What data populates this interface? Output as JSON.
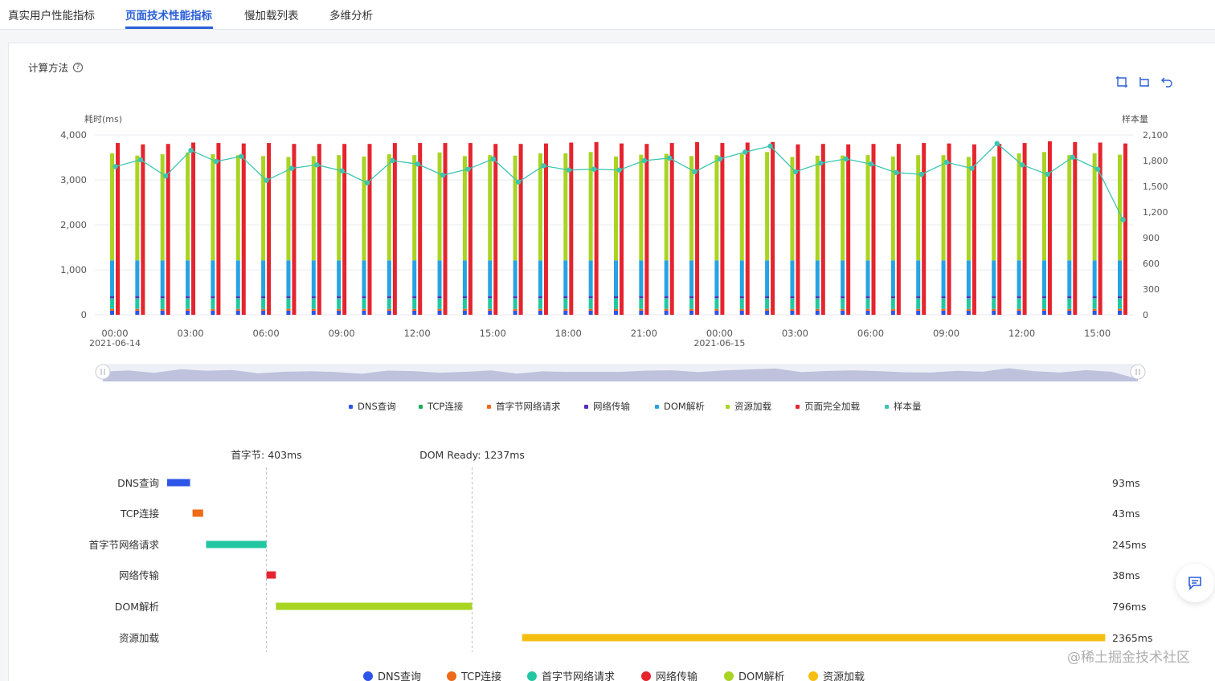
{
  "tabs": [
    {
      "label": "真实用户性能指标",
      "active": false
    },
    {
      "label": "页面技术性能指标",
      "active": true
    },
    {
      "label": "慢加载列表",
      "active": false
    },
    {
      "label": "多维分析",
      "active": false
    }
  ],
  "calc_label": "计算方法",
  "help_icon": "question-circle-icon",
  "toolbox_icons": [
    "zoom-area-icon",
    "zoom-reset-icon",
    "restore-icon"
  ],
  "colors": {
    "dns": "#2d55e8",
    "tcp": "#ee6a17",
    "ttfb": "#22c7a2",
    "transfer": "#5a2ab8",
    "dom": "#27a3e3",
    "resource": "#a8d422",
    "load": "#e5242e",
    "sample": "#3cc6b1",
    "transfer_bar": "#e5242e",
    "resource_bar": "#f5be12",
    "accent": "#2b5fd9"
  },
  "chart_data": [
    {
      "type": "bar",
      "stacked": true,
      "ylabel_left": "耗时(ms)",
      "ylabel_right": "样本量",
      "ylim_left": [
        0,
        4000
      ],
      "yticks_left": [
        "0",
        "1,000",
        "2,000",
        "3,000",
        "4,000"
      ],
      "ylim_right": [
        0,
        2100
      ],
      "yticks_right": [
        "0",
        "300",
        "600",
        "900",
        "1,200",
        "1,500",
        "1,800",
        "2,100"
      ],
      "xticks": [
        {
          "label": "00:00",
          "sub": "2021-06-14",
          "index": 0
        },
        {
          "label": "03:00",
          "sub": "",
          "index": 3
        },
        {
          "label": "06:00",
          "sub": "",
          "index": 6
        },
        {
          "label": "09:00",
          "sub": "",
          "index": 9
        },
        {
          "label": "12:00",
          "sub": "",
          "index": 12
        },
        {
          "label": "15:00",
          "sub": "",
          "index": 15
        },
        {
          "label": "18:00",
          "sub": "",
          "index": 18
        },
        {
          "label": "21:00",
          "sub": "",
          "index": 21
        },
        {
          "label": "00:00",
          "sub": "2021-06-15",
          "index": 24
        },
        {
          "label": "03:00",
          "sub": "",
          "index": 27
        },
        {
          "label": "06:00",
          "sub": "",
          "index": 30
        },
        {
          "label": "09:00",
          "sub": "",
          "index": 33
        },
        {
          "label": "12:00",
          "sub": "",
          "index": 36
        },
        {
          "label": "15:00",
          "sub": "",
          "index": 39
        }
      ],
      "legend": [
        "DNS查询",
        "TCP连接",
        "首字节网络请求",
        "网络传输",
        "DOM解析",
        "资源加载",
        "页面完全加载",
        "样本量"
      ],
      "stack_series": {
        "dns": [
          90,
          90,
          90,
          90,
          90,
          90,
          90,
          90,
          90,
          90,
          90,
          90,
          90,
          90,
          90,
          90,
          90,
          90,
          90,
          90,
          90,
          90,
          90,
          90,
          90,
          90,
          90,
          90,
          90,
          90,
          90,
          90,
          90,
          90,
          90,
          90,
          90,
          90,
          90,
          90,
          90
        ],
        "tcp": [
          40,
          40,
          40,
          40,
          40,
          40,
          40,
          40,
          40,
          40,
          40,
          40,
          40,
          40,
          40,
          40,
          40,
          40,
          40,
          40,
          40,
          40,
          40,
          40,
          40,
          40,
          40,
          40,
          40,
          40,
          40,
          40,
          40,
          40,
          40,
          40,
          40,
          40,
          40,
          40,
          40
        ],
        "ttfb": [
          240,
          240,
          240,
          240,
          240,
          240,
          240,
          240,
          240,
          240,
          240,
          240,
          240,
          240,
          240,
          240,
          240,
          240,
          240,
          240,
          240,
          240,
          240,
          240,
          240,
          240,
          240,
          240,
          240,
          240,
          240,
          240,
          240,
          240,
          240,
          240,
          240,
          240,
          240,
          240,
          240
        ],
        "transfer": [
          40,
          40,
          40,
          40,
          40,
          40,
          40,
          40,
          40,
          40,
          40,
          40,
          40,
          40,
          40,
          40,
          40,
          40,
          40,
          40,
          40,
          40,
          40,
          40,
          40,
          40,
          40,
          40,
          40,
          40,
          40,
          40,
          40,
          40,
          40,
          40,
          40,
          40,
          40,
          40,
          40
        ],
        "dom": [
          800,
          800,
          800,
          800,
          800,
          800,
          800,
          800,
          800,
          800,
          800,
          800,
          800,
          800,
          800,
          800,
          800,
          800,
          800,
          800,
          800,
          800,
          800,
          800,
          800,
          800,
          800,
          800,
          800,
          800,
          800,
          800,
          800,
          800,
          800,
          800,
          800,
          800,
          800,
          800,
          800
        ],
        "resource": [
          2380,
          2330,
          2360,
          2400,
          2360,
          2340,
          2320,
          2300,
          2320,
          2340,
          2310,
          2360,
          2340,
          2400,
          2320,
          2340,
          2330,
          2380,
          2380,
          2410,
          2310,
          2350,
          2370,
          2320,
          2340,
          2370,
          2410,
          2300,
          2330,
          2330,
          2340,
          2310,
          2340,
          2340,
          2300,
          2310,
          2380,
          2410,
          2340,
          2380,
          2350
        ]
      },
      "load": [
        3820,
        3790,
        3800,
        3830,
        3820,
        3810,
        3820,
        3800,
        3800,
        3800,
        3800,
        3820,
        3820,
        3820,
        3820,
        3800,
        3800,
        3810,
        3830,
        3840,
        3810,
        3800,
        3820,
        3840,
        3820,
        3830,
        3840,
        3790,
        3800,
        3790,
        3800,
        3800,
        3820,
        3810,
        3790,
        3800,
        3820,
        3860,
        3840,
        3830,
        3810
      ],
      "sample": [
        1730,
        1810,
        1620,
        1920,
        1790,
        1850,
        1570,
        1710,
        1750,
        1680,
        1540,
        1800,
        1760,
        1630,
        1700,
        1820,
        1550,
        1740,
        1690,
        1700,
        1690,
        1800,
        1830,
        1670,
        1820,
        1900,
        1970,
        1670,
        1770,
        1820,
        1760,
        1660,
        1640,
        1780,
        1710,
        2000,
        1750,
        1640,
        1840,
        1700,
        1110
      ]
    },
    {
      "type": "gantt",
      "markers": [
        {
          "label": "首字节: 403ms",
          "value": 403
        },
        {
          "label": "DOM Ready: 1237ms",
          "value": 1237
        }
      ],
      "rows": [
        {
          "name": "DNS查询",
          "start": 0,
          "value": 93,
          "label": "93ms",
          "color_key": "dns"
        },
        {
          "name": "TCP连接",
          "start": 103,
          "value": 43,
          "label": "43ms",
          "color_key": "tcp"
        },
        {
          "name": "首字节网络请求",
          "start": 158,
          "value": 245,
          "label": "245ms",
          "color_key": "ttfb"
        },
        {
          "name": "网络传输",
          "start": 403,
          "value": 38,
          "label": "38ms",
          "color_key": "transfer_bar"
        },
        {
          "name": "DOM解析",
          "start": 441,
          "value": 796,
          "label": "796ms",
          "color_key": "dom_bar"
        },
        {
          "name": "资源加载",
          "start": 1440,
          "value": 2365,
          "label": "2365ms",
          "color_key": "resource_bar"
        }
      ],
      "legend": [
        "DNS查询",
        "TCP连接",
        "首字节网络请求",
        "网络传输",
        "DOM解析",
        "资源加载"
      ]
    }
  ],
  "watermark": "@稀土掘金技术社区",
  "chat_icon": "chat-icon"
}
